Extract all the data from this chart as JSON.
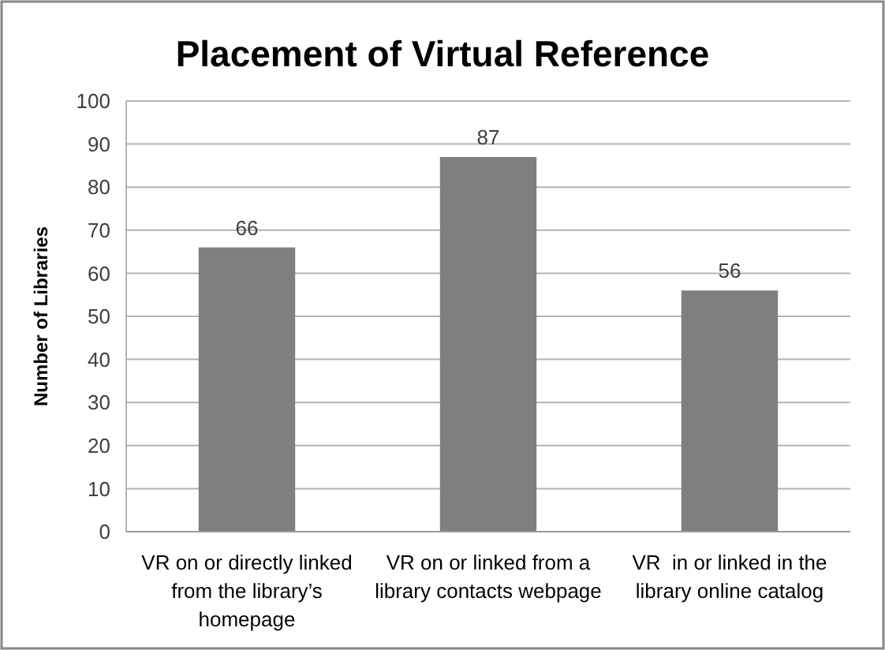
{
  "chart_data": {
    "type": "bar",
    "title": "Placement of Virtual Reference",
    "ylabel": "Number of Libraries",
    "categories": [
      "VR on or directly linked from the library’s homepage",
      "VR on or linked from a library contacts webpage",
      "VR  in or linked in the library online catalog"
    ],
    "values": [
      66,
      87,
      56
    ],
    "color": "#7f7f7f",
    "ylim": [
      0,
      100
    ],
    "yticks": [
      0,
      10,
      20,
      30,
      40,
      50,
      60,
      70,
      80,
      90,
      100
    ],
    "grid": "y",
    "data_labels": true
  }
}
